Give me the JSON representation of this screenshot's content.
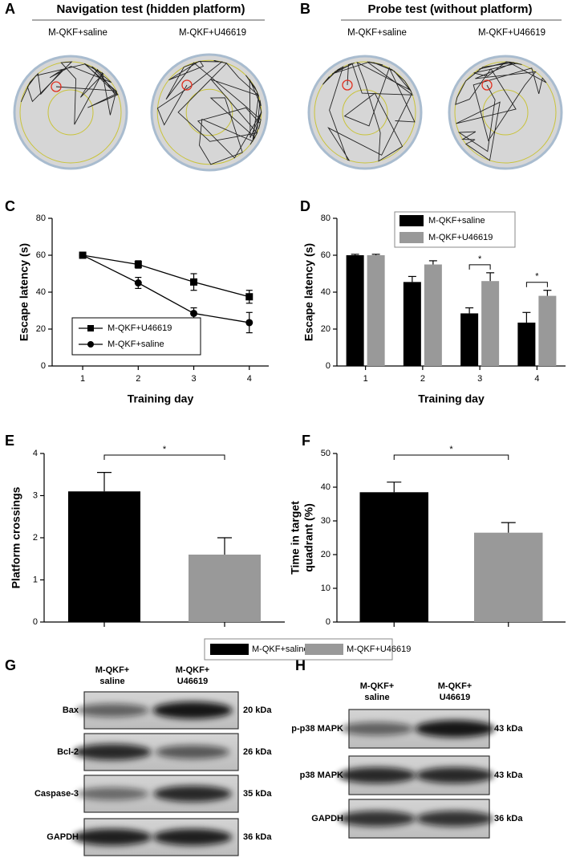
{
  "panel_labels": [
    "A",
    "B",
    "C",
    "D",
    "E",
    "F",
    "G",
    "H"
  ],
  "maze": {
    "navigation_title": "Navigation test (hidden platform)",
    "probe_title": "Probe test (without platform)",
    "group_labels": [
      "M-QKF+saline",
      "M-QKF+U46619",
      "M-QKF+saline",
      "M-QKF+U46619"
    ]
  },
  "chart_data": [
    {
      "type": "line",
      "xlabel": "Training day",
      "ylabel": "Escape latency (s)",
      "x": [
        1,
        2,
        3,
        4
      ],
      "xlim": [
        0.45,
        4.35
      ],
      "xticks": [
        1,
        2,
        3,
        4
      ],
      "ylim": [
        0,
        80
      ],
      "yticks": [
        0,
        20,
        40,
        60,
        80
      ],
      "legend": "lower left",
      "series": [
        {
          "name": "M-QKF+U46619",
          "color": "#000000",
          "marker": "square",
          "values": [
            60,
            55,
            45.5,
            37.5
          ],
          "errors": [
            1,
            2,
            4.5,
            3.5
          ]
        },
        {
          "name": "M-QKF+saline",
          "color": "#000000",
          "marker": "circle",
          "values": [
            60,
            45,
            28.5,
            23.5
          ],
          "errors": [
            1,
            3,
            3,
            5.5
          ]
        }
      ]
    },
    {
      "type": "grouped_bar",
      "xlabel": "Training day",
      "ylabel": "Escape latency (s)",
      "categories": [
        "1",
        "2",
        "3",
        "4"
      ],
      "ylim": [
        0,
        80
      ],
      "yticks": [
        0,
        20,
        40,
        60,
        80
      ],
      "legend": "upper right",
      "significance": [
        null,
        null,
        "*",
        "*"
      ],
      "series": [
        {
          "name": "M-QKF+saline",
          "color": "#000000",
          "values": [
            60,
            45.5,
            28.5,
            23.5
          ],
          "errors": [
            0.5,
            3,
            3,
            5.5
          ]
        },
        {
          "name": "M-QKF+U46619",
          "color": "#999999",
          "values": [
            60,
            55,
            46,
            38
          ],
          "errors": [
            0.5,
            2,
            4.5,
            3
          ]
        }
      ]
    },
    {
      "type": "bar",
      "ylabel": [
        "Platform crossings"
      ],
      "categories": [
        null,
        null
      ],
      "values": [
        3.1,
        1.6
      ],
      "errors": [
        0.45,
        0.4
      ],
      "colors": [
        "#000000",
        "#999999"
      ],
      "ylim": [
        0,
        4
      ],
      "yticks": [
        0,
        1,
        2,
        3,
        4
      ],
      "significance": "*"
    },
    {
      "type": "bar",
      "ylabel": [
        "Time in target",
        "quadrant (%)"
      ],
      "categories": [
        null,
        null
      ],
      "values": [
        38.5,
        26.5
      ],
      "errors": [
        3,
        3
      ],
      "colors": [
        "#000000",
        "#999999"
      ],
      "ylim": [
        0,
        50
      ],
      "yticks": [
        0,
        10,
        20,
        30,
        40,
        50
      ],
      "significance": "*"
    }
  ],
  "legend": {
    "entries": [
      {
        "name": "M-QKF+saline",
        "color": "#000000"
      },
      {
        "name": "M-QKF+U46619",
        "color": "#999999"
      }
    ]
  },
  "blots": [
    {
      "columns": [
        [
          "M-QKF+",
          "saline"
        ],
        [
          "M-QKF+",
          "U46619"
        ]
      ],
      "rows": [
        {
          "label": "Bax",
          "size": "20 kDa"
        },
        {
          "label": "Bcl-2",
          "size": "26 kDa"
        },
        {
          "label": "Caspase-3",
          "size": "35 kDa"
        },
        {
          "label": "GAPDH",
          "size": "36 kDa"
        }
      ]
    },
    {
      "columns": [
        [
          "M-QKF+",
          "saline"
        ],
        [
          "M-QKF+",
          "U46619"
        ]
      ],
      "rows": [
        {
          "label": "p-p38 MAPK",
          "size": "43 kDa"
        },
        {
          "label": "p38 MAPK",
          "size": "43 kDa"
        },
        {
          "label": "GAPDH",
          "size": "36 kDa"
        }
      ]
    }
  ]
}
